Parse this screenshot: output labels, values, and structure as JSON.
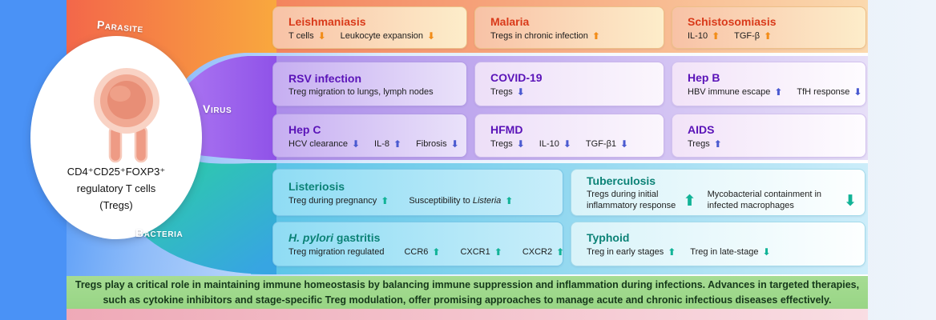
{
  "diagram": {
    "category_labels": {
      "parasite": "Parasite",
      "virus": "Virus",
      "bacteria": "Bacteria"
    },
    "category_colors": {
      "parasite": "#f3815a",
      "virus": "#9a5dee",
      "bacteria": "#2fc7ab"
    },
    "center": {
      "line1": "CD4⁺CD25⁺FOXP3⁺",
      "line2": "regulatory T cells",
      "line3": "(Tregs)"
    }
  },
  "icons": {
    "up": "⬆",
    "down": "⬇"
  },
  "rows": [
    {
      "name": "parasite-row",
      "cards": [
        {
          "name": "leishmaniasis",
          "style": "p",
          "title": {
            "pre": "Leishmaniasis"
          },
          "entries": [
            {
              "pre": "T cells",
              "dir": "down"
            },
            {
              "pre": "Leukocyte expansion",
              "dir": "down"
            }
          ]
        },
        {
          "name": "malaria",
          "style": "p",
          "title": {
            "pre": "Malaria"
          },
          "entries": [
            {
              "pre": "Tregs in chronic infection",
              "dir": "up"
            }
          ]
        },
        {
          "name": "schistosomiasis",
          "style": "p",
          "title": {
            "pre": "Schistosomiasis"
          },
          "entries": [
            {
              "pre": "IL-10",
              "dir": "up"
            },
            {
              "pre": "TGF-β",
              "dir": "up"
            }
          ]
        }
      ]
    },
    {
      "name": "virus-row-1",
      "cards": [
        {
          "name": "rsv-infection",
          "style": "v1",
          "title": {
            "pre": "RSV infection"
          },
          "entries": [
            {
              "pre": "Treg migration to lungs, lymph nodes",
              "dir": ""
            }
          ]
        },
        {
          "name": "covid-19",
          "style": "v2",
          "title": {
            "pre": "COVID-19"
          },
          "entries": [
            {
              "pre": "Tregs",
              "dir": "down"
            }
          ]
        },
        {
          "name": "hep-b",
          "style": "v3",
          "title": {
            "pre": "Hep B"
          },
          "entries": [
            {
              "pre": "HBV immune escape",
              "dir": "up"
            },
            {
              "pre": "TfH response",
              "dir": "down"
            }
          ]
        }
      ]
    },
    {
      "name": "virus-row-2",
      "cards": [
        {
          "name": "hep-c",
          "style": "v1",
          "title": {
            "pre": "Hep C"
          },
          "entries": [
            {
              "pre": "HCV clearance",
              "dir": "down"
            },
            {
              "pre": "IL-8",
              "dir": "up"
            },
            {
              "pre": "Fibrosis",
              "dir": "down"
            }
          ]
        },
        {
          "name": "hfmd",
          "style": "v2",
          "title": {
            "pre": "HFMD"
          },
          "entries": [
            {
              "pre": "Tregs",
              "dir": "down"
            },
            {
              "pre": "IL-10",
              "dir": "down"
            },
            {
              "pre": "TGF-β1",
              "dir": "down"
            }
          ]
        },
        {
          "name": "aids",
          "style": "v3",
          "title": {
            "pre": "AIDS"
          },
          "entries": [
            {
              "pre": "Tregs",
              "dir": "up"
            }
          ]
        }
      ]
    },
    {
      "name": "bacteria-row-1",
      "cards": [
        {
          "name": "listeriosis",
          "style": "b1",
          "title": {
            "pre": "Listeriosis"
          },
          "entries": [
            {
              "pre": "Treg during pregnancy",
              "dir": "up"
            },
            {
              "pre": "Susceptibility to ",
              "it": "Listeria",
              "dir": "up"
            }
          ]
        },
        {
          "name": "tuberculosis",
          "style": "b2",
          "title": {
            "pre": "Tuberculosis"
          },
          "entries": [
            {
              "pre": "Tregs during initial inflammatory response",
              "dir": "up",
              "tall": true
            },
            {
              "pre": "Mycobacterial containment in infected macrophages",
              "dir": "down",
              "tall": true
            }
          ]
        }
      ]
    },
    {
      "name": "bacteria-row-2",
      "cards": [
        {
          "name": "h-pylori-gastritis",
          "style": "b1",
          "title": {
            "it": "H. pylori",
            "post": " gastritis"
          },
          "entries": [
            {
              "pre": "Treg migration regulated",
              "dir": ""
            },
            {
              "pre": "CCR6",
              "dir": "up"
            },
            {
              "pre": "CXCR1",
              "dir": "up"
            },
            {
              "pre": "CXCR2",
              "dir": "up"
            }
          ]
        },
        {
          "name": "typhoid",
          "style": "b2",
          "title": {
            "pre": "Typhoid"
          },
          "entries": [
            {
              "pre": "Treg in early stages",
              "dir": "up"
            },
            {
              "pre": "Treg in late-stage",
              "dir": "down"
            }
          ]
        }
      ]
    }
  ],
  "banner": {
    "line1": "Tregs play a critical role in maintaining immune homeostasis by balancing immune suppression and inflammation during infections. Advances in targeted therapies,",
    "line2": "such as cytokine inhibitors and stage-specific Treg modulation, offer promising approaches to manage acute and chronic infectious diseases effectively."
  }
}
